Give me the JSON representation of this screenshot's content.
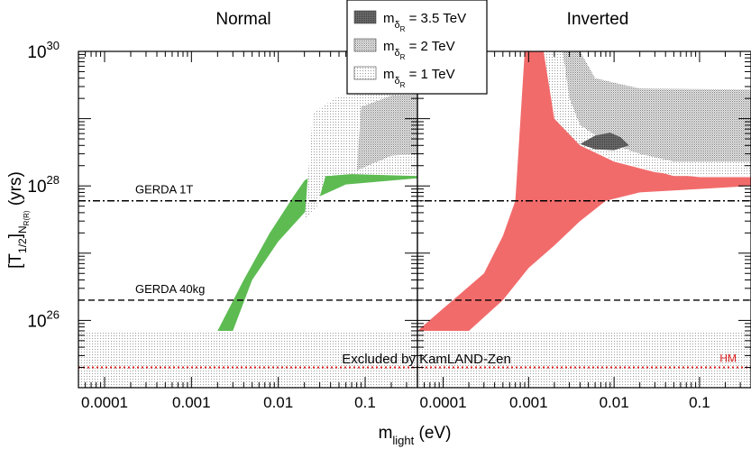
{
  "chart_data": {
    "type": "area",
    "panels": [
      {
        "title": "Normal"
      },
      {
        "title": "Inverted"
      }
    ],
    "xlabel": {
      "main": "m",
      "sub": "light",
      "unit": " (eV)"
    },
    "ylabel": {
      "prefix": "[T",
      "sub1": "1/2",
      "mid": "]",
      "sub2": "N",
      "sub3": "R(R)",
      "suffix": " (yrs)"
    },
    "x_scale": "log",
    "y_scale": "log",
    "xlim": [
      5e-05,
      0.4
    ],
    "ylim": [
      1e+25,
      1e+30
    ],
    "x_ticks": [
      {
        "value": 0.0001,
        "label": "0.0001"
      },
      {
        "value": 0.001,
        "label": "0.001"
      },
      {
        "value": 0.01,
        "label": "0.01"
      },
      {
        "value": 0.1,
        "label": "0.1"
      }
    ],
    "y_ticks": [
      {
        "value": 1e+26,
        "mantissa": "10",
        "exp": "26"
      },
      {
        "value": 1e+28,
        "mantissa": "10",
        "exp": "28"
      },
      {
        "value": 1e+30,
        "mantissa": "10",
        "exp": "30"
      }
    ],
    "legend": {
      "placement": "top-center",
      "entries": [
        {
          "prefix": "m",
          "sub": "δ",
          "subsub": "R",
          "value": " = 3.5 TeV",
          "fill": "dense"
        },
        {
          "prefix": "m",
          "sub": "δ",
          "subsub": "R",
          "value": " = 2 TeV",
          "fill": "medium"
        },
        {
          "prefix": "m",
          "sub": "δ",
          "subsub": "R",
          "value": " = 1 TeV",
          "fill": "light"
        }
      ]
    },
    "reference_lines": [
      {
        "label": "GERDA 1T",
        "y": 6e+27,
        "style": "dash-dot"
      },
      {
        "label": "GERDA 40kg",
        "y": 2e+26,
        "style": "dashed"
      },
      {
        "label": "HM",
        "y": 2e+25,
        "style": "dotted",
        "color": "#e02020"
      }
    ],
    "excluded_region": {
      "label": "Excluded by KamLAND-Zen",
      "y_min": 1e+25,
      "y_max": 7e+25
    },
    "series": [
      {
        "name": "Normal hierarchy",
        "panel": 0,
        "color": "#5dbb52",
        "polygon": [
          [
            0.002,
            7e+25
          ],
          [
            0.003,
            7e+25
          ],
          [
            0.005,
            4e+26
          ],
          [
            0.01,
            1.5e+27
          ],
          [
            0.02,
            4e+27
          ],
          [
            0.03,
            7e+27
          ],
          [
            0.06,
            1.05e+28
          ],
          [
            0.2,
            1.2e+28
          ],
          [
            0.4,
            1.3e+28
          ],
          [
            0.4,
            2e+28
          ],
          [
            0.2,
            2e+28
          ],
          [
            0.07,
            1.7e+28
          ],
          [
            0.04,
            1.4e+28
          ],
          [
            0.028,
            1.6e+28
          ],
          [
            0.02,
            1.2e+28
          ],
          [
            0.015,
            7e+27
          ],
          [
            0.008,
            2e+27
          ],
          [
            0.004,
            4e+26
          ]
        ]
      },
      {
        "name": "Inverted hierarchy",
        "panel": 1,
        "color": "#f26b6b",
        "polygon": [
          [
            5e-05,
            7e+25
          ],
          [
            0.0001,
            1.5e+26
          ],
          [
            0.0003,
            5e+26
          ],
          [
            0.0005,
            1.8e+27
          ],
          [
            0.0007,
            6e+27
          ],
          [
            0.0009,
            1e+30
          ],
          [
            0.0015,
            1e+30
          ],
          [
            0.002,
            1e+29
          ],
          [
            0.004,
            4e+28
          ],
          [
            0.01,
            2.3e+28
          ],
          [
            0.03,
            1.6e+28
          ],
          [
            0.1,
            1.35e+28
          ],
          [
            0.4,
            1.35e+28
          ],
          [
            0.4,
            1e+28
          ],
          [
            0.1,
            9e+27
          ],
          [
            0.02,
            8e+27
          ],
          [
            0.008,
            6e+27
          ],
          [
            0.004,
            3e+27
          ],
          [
            0.002,
            1.3e+27
          ],
          [
            0.001,
            6e+26
          ],
          [
            0.0005,
            2e+26
          ],
          [
            0.0002,
            7e+25
          ]
        ]
      },
      {
        "name": "m_δR = 1 TeV region (Normal)",
        "panel": 0,
        "fill": "light",
        "polygon": [
          [
            0.02,
            3e+27
          ],
          [
            0.025,
            1.2e+29
          ],
          [
            0.05,
            2.2e+29
          ],
          [
            0.4,
            2.5e+29
          ],
          [
            0.4,
            1.4e+28
          ],
          [
            0.07,
            1.5e+28
          ],
          [
            0.035,
            1.4e+28
          ],
          [
            0.028,
            5e+27
          ]
        ]
      },
      {
        "name": "m_δR = 2 TeV region (Normal)",
        "panel": 0,
        "fill": "medium",
        "polygon": [
          [
            0.08,
            1.7e+28
          ],
          [
            0.09,
            1.5e+29
          ],
          [
            0.2,
            2.2e+29
          ],
          [
            0.4,
            2.3e+29
          ],
          [
            0.4,
            3e+28
          ],
          [
            0.2,
            2.8e+28
          ]
        ]
      },
      {
        "name": "m_δR = 1 TeV region (Inverted)",
        "panel": 1,
        "fill": "light",
        "polygon": [
          [
            0.0015,
            1e+30
          ],
          [
            0.0025,
            1e+30
          ],
          [
            0.003,
            5e+29
          ],
          [
            0.01,
            3e+29
          ],
          [
            0.4,
            2.5e+29
          ],
          [
            0.4,
            1.4e+28
          ],
          [
            0.05,
            1.4e+28
          ],
          [
            0.01,
            2.4e+28
          ],
          [
            0.004,
            4e+28
          ],
          [
            0.002,
            1e+29
          ]
        ]
      },
      {
        "name": "m_δR = 2 TeV region (Inverted)",
        "panel": 1,
        "fill": "medium",
        "polygon": [
          [
            0.0025,
            1e+30
          ],
          [
            0.004,
            1e+30
          ],
          [
            0.006,
            4e+29
          ],
          [
            0.02,
            2.8e+29
          ],
          [
            0.4,
            2.7e+29
          ],
          [
            0.4,
            2.3e+28
          ],
          [
            0.05,
            2.3e+28
          ],
          [
            0.02,
            3e+28
          ],
          [
            0.008,
            4.5e+28
          ],
          [
            0.004,
            8e+28
          ],
          [
            0.003,
            2e+29
          ]
        ]
      },
      {
        "name": "m_δR = 3.5 TeV region (Inverted)",
        "panel": 1,
        "fill": "dense",
        "polygon": [
          [
            0.004,
            4.2e+28
          ],
          [
            0.006,
            5.6e+28
          ],
          [
            0.009,
            6.2e+28
          ],
          [
            0.012,
            5.3e+28
          ],
          [
            0.015,
            4e+28
          ],
          [
            0.01,
            3.4e+28
          ],
          [
            0.006,
            3.5e+28
          ]
        ]
      }
    ]
  }
}
